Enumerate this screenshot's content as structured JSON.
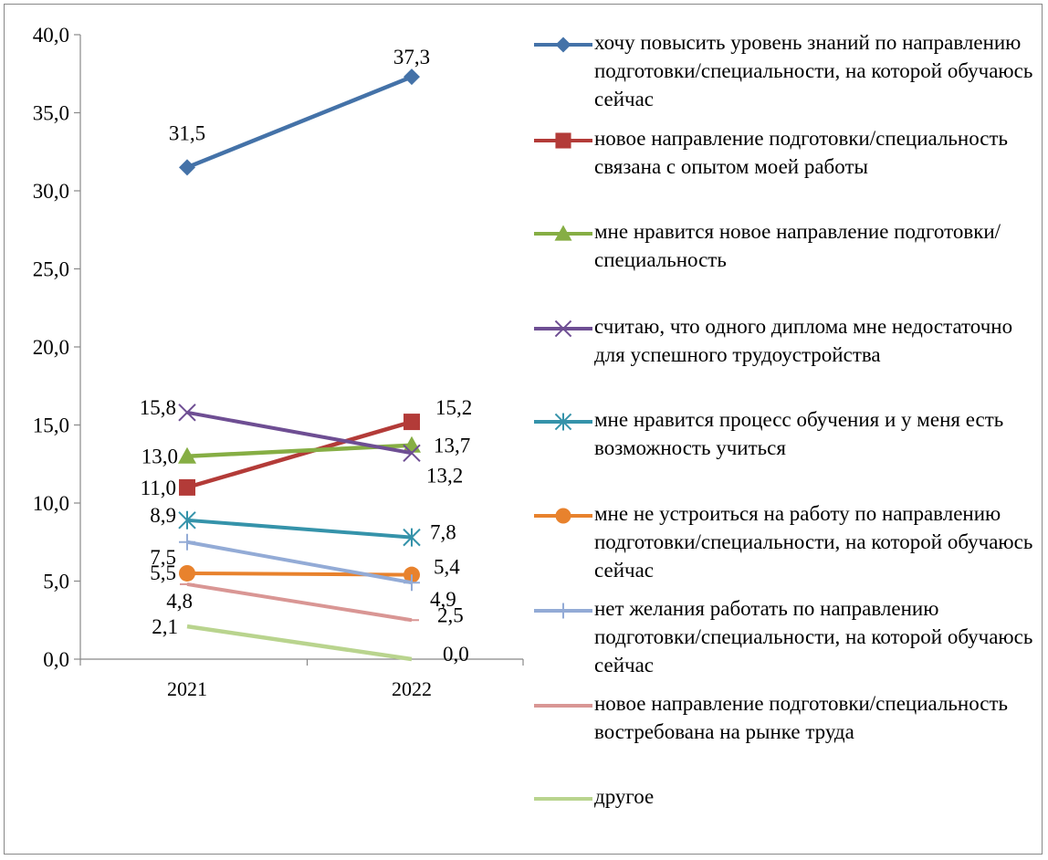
{
  "chart_data": {
    "type": "line",
    "title": "",
    "xlabel": "",
    "ylabel": "",
    "categories": [
      "2021",
      "2022"
    ],
    "ylim": [
      0,
      40
    ],
    "ytick_step": 5,
    "ytick_labels": [
      "0,0",
      "5,0",
      "10,0",
      "15,0",
      "20,0",
      "25,0",
      "30,0",
      "35,0",
      "40,0"
    ],
    "grid": false,
    "legend_position": "right",
    "series": [
      {
        "name": "хочу повысить уровень знаний по направлению подготовки/специальности, на которой обучаюсь сейчас",
        "values": [
          31.5,
          37.3
        ],
        "labels": [
          "31,5",
          "37,3"
        ],
        "color": "#4472A8",
        "marker": "diamond"
      },
      {
        "name": "новое направление подготовки/специальность связана с опытом моей работы",
        "values": [
          11.0,
          15.2
        ],
        "labels": [
          "11,0",
          "15,2"
        ],
        "color": "#B33B38",
        "marker": "square"
      },
      {
        "name": "мне нравится новое направление подготовки/специальность",
        "values": [
          13.0,
          13.7
        ],
        "labels": [
          "13,0",
          "13,7"
        ],
        "color": "#86AE44",
        "marker": "triangle"
      },
      {
        "name": "считаю, что одного диплома мне недостаточно для успешного трудоустройства",
        "values": [
          15.8,
          13.2
        ],
        "labels": [
          "15,8",
          "13,2"
        ],
        "color": "#6E4E93",
        "marker": "x"
      },
      {
        "name": "мне нравится процесс обучения и у меня есть возможность учиться",
        "values": [
          8.9,
          7.8
        ],
        "labels": [
          "8,9",
          "7,8"
        ],
        "color": "#3593AA",
        "marker": "asterisk"
      },
      {
        "name": "мне не устроиться на работу по направлению подготовки/специальности, на которой обучаюсь сейчас",
        "values": [
          5.5,
          5.4
        ],
        "labels": [
          "5,5",
          "5,4"
        ],
        "color": "#E8822D",
        "marker": "circle"
      },
      {
        "name": "нет желания работать по направлению подготовки/специальности, на которой обучаюсь сейчас",
        "values": [
          7.5,
          4.9
        ],
        "labels": [
          "7,5",
          "4,9"
        ],
        "color": "#93ABD6",
        "marker": "plus"
      },
      {
        "name": "новое направление подготовки/специальность востребована на рынке труда",
        "values": [
          4.8,
          2.5
        ],
        "labels": [
          "4,8",
          "2,5"
        ],
        "color": "#D99694",
        "marker": "dash"
      },
      {
        "name": "другое",
        "values": [
          2.1,
          0.0
        ],
        "labels": [
          "2,1",
          "0,0"
        ],
        "color": "#B9D48E",
        "marker": "none"
      }
    ]
  }
}
